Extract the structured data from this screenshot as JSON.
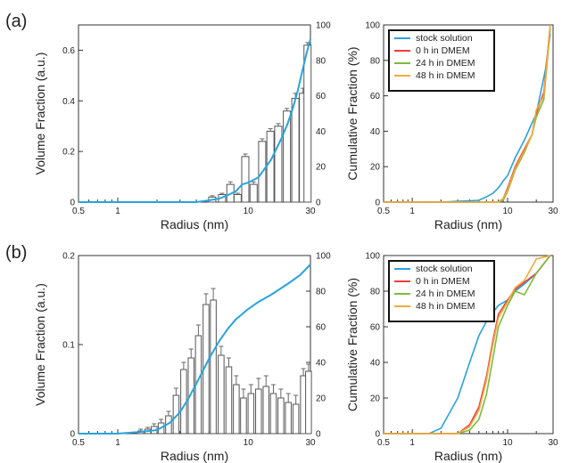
{
  "panel_labels": [
    "(a)",
    "(b)"
  ],
  "chart_data": [
    {
      "type": "bar",
      "panel": "(a)",
      "xlabel": "Radius (nm)",
      "ylabel": "Volume Fraction (a.u.)",
      "xscale": "log",
      "xlim": [
        0.5,
        30
      ],
      "xticks": [
        0.5,
        1,
        10,
        30
      ],
      "ylim": [
        0,
        0.7
      ],
      "yticks": [
        0.0,
        0.2,
        0.4,
        0.6
      ],
      "y2lim": [
        0,
        100
      ],
      "y2ticks": [
        0,
        20,
        40,
        60,
        80,
        100
      ],
      "bars": {
        "x": [
          5.3,
          6.3,
          7.3,
          8.3,
          9.5,
          11.0,
          12.8,
          14.8,
          17.0,
          19.8,
          23.0,
          26.3,
          28.5
        ],
        "values": [
          0.02,
          0.03,
          0.07,
          0.03,
          0.18,
          0.07,
          0.24,
          0.28,
          0.3,
          0.36,
          0.41,
          0.43,
          0.62
        ],
        "errors": [
          0.005,
          0.005,
          0.01,
          0.005,
          0.01,
          0.01,
          0.01,
          0.01,
          0.01,
          0.01,
          0.02,
          0.02,
          0.01
        ]
      },
      "cumulative": {
        "color": "#29a3de",
        "x": [
          0.5,
          0.7,
          1,
          2,
          3,
          4,
          5,
          6,
          7,
          8,
          9,
          10,
          12,
          15,
          18,
          20,
          22,
          24,
          26,
          28,
          30
        ],
        "y": [
          0,
          0,
          0,
          0,
          0,
          0,
          1,
          2,
          4,
          6,
          10,
          11,
          14,
          24,
          36,
          44,
          53,
          63,
          74,
          84,
          92
        ]
      }
    },
    {
      "type": "line",
      "panel": "(a)",
      "xlabel": "Radius (nm)",
      "ylabel": "Cumulative Fraction (%)",
      "xscale": "log",
      "xlim": [
        0.5,
        30
      ],
      "xticks": [
        0.5,
        1,
        10,
        30
      ],
      "ylim": [
        0,
        100
      ],
      "yticks": [
        0,
        20,
        40,
        60,
        80,
        100
      ],
      "legend": "top-left",
      "series": [
        {
          "name": "stock solution",
          "color": "#29a3de",
          "x": [
            0.5,
            1,
            2,
            5,
            6,
            7,
            8,
            9,
            10,
            12,
            15,
            20,
            25,
            28
          ],
          "y": [
            0,
            0,
            0,
            1,
            3,
            5,
            8,
            12,
            15,
            25,
            35,
            50,
            75,
            95
          ]
        },
        {
          "name": "0 h in DMEM",
          "color": "#e8403c",
          "x": [
            0.5,
            1,
            5,
            8,
            9,
            10,
            12,
            15,
            18,
            20,
            24,
            28
          ],
          "y": [
            0,
            0,
            0,
            0,
            2,
            8,
            20,
            30,
            38,
            50,
            62,
            100
          ]
        },
        {
          "name": "24 h in DMEM",
          "color": "#7cbb3c",
          "x": [
            0.5,
            1,
            5,
            8,
            9,
            10,
            12,
            15,
            18,
            20,
            24,
            28
          ],
          "y": [
            0,
            0,
            0,
            0,
            1,
            6,
            18,
            28,
            38,
            48,
            58,
            98
          ]
        },
        {
          "name": "48 h in DMEM",
          "color": "#f2a93b",
          "x": [
            0.5,
            1,
            5,
            8,
            9,
            10,
            12,
            15,
            18,
            20,
            24,
            28
          ],
          "y": [
            0,
            0,
            0,
            0,
            2,
            7,
            19,
            29,
            38,
            52,
            60,
            100
          ]
        }
      ]
    },
    {
      "type": "bar",
      "panel": "(b)",
      "xlabel": "Radius (nm)",
      "ylabel": "Volume Fraction (a.u.)",
      "xscale": "log",
      "xlim": [
        0.5,
        30
      ],
      "xticks": [
        0.5,
        1,
        10,
        30
      ],
      "ylim": [
        0,
        0.2
      ],
      "yticks": [
        0.0,
        0.1,
        0.2
      ],
      "y2lim": [
        0,
        100
      ],
      "y2ticks": [
        0,
        20,
        40,
        60,
        80,
        100
      ],
      "bars": {
        "x": [
          1.5,
          1.7,
          1.9,
          2.15,
          2.45,
          2.8,
          3.2,
          3.65,
          4.15,
          4.75,
          5.4,
          6.2,
          7.1,
          8.1,
          9.2,
          10.5,
          12.0,
          13.7,
          15.6,
          17.8,
          20.3,
          23.2,
          26.5,
          29.0
        ],
        "values": [
          0.003,
          0.005,
          0.008,
          0.012,
          0.02,
          0.043,
          0.072,
          0.085,
          0.11,
          0.145,
          0.15,
          0.088,
          0.075,
          0.055,
          0.04,
          0.045,
          0.05,
          0.053,
          0.045,
          0.04,
          0.035,
          0.033,
          0.065,
          0.07
        ],
        "errors": [
          0.002,
          0.002,
          0.003,
          0.004,
          0.005,
          0.008,
          0.008,
          0.01,
          0.012,
          0.012,
          0.013,
          0.01,
          0.01,
          0.01,
          0.01,
          0.01,
          0.012,
          0.012,
          0.01,
          0.01,
          0.01,
          0.01,
          0.008,
          0.008
        ]
      },
      "cumulative": {
        "color": "#29a3de",
        "x": [
          0.5,
          1,
          1.5,
          2,
          2.5,
          3,
          3.5,
          4,
          5,
          6,
          7,
          8,
          10,
          12,
          15,
          20,
          25,
          30
        ],
        "y": [
          0,
          0,
          1,
          2,
          6,
          12,
          20,
          28,
          42,
          52,
          59,
          64,
          70,
          74,
          78,
          84,
          89,
          95
        ]
      }
    },
    {
      "type": "line",
      "panel": "(b)",
      "xlabel": "Radius (nm)",
      "ylabel": "Cumulative Fraction (%)",
      "xscale": "log",
      "xlim": [
        0.5,
        30
      ],
      "xticks": [
        0.5,
        1,
        10,
        30
      ],
      "ylim": [
        0,
        100
      ],
      "yticks": [
        0,
        20,
        40,
        60,
        80,
        100
      ],
      "legend": "top-left",
      "series": [
        {
          "name": "stock solution",
          "color": "#29a3de",
          "x": [
            0.5,
            1,
            1.5,
            2,
            3,
            4,
            5,
            6,
            7,
            8,
            10,
            12,
            15,
            20,
            28
          ],
          "y": [
            0,
            0,
            0,
            3,
            20,
            40,
            55,
            63,
            68,
            72,
            75,
            80,
            84,
            90,
            100
          ]
        },
        {
          "name": "0 h in DMEM",
          "color": "#e8403c",
          "x": [
            0.5,
            1,
            2,
            3,
            4,
            5,
            6,
            7,
            8,
            10,
            12,
            15,
            20,
            28
          ],
          "y": [
            0,
            0,
            0,
            0,
            5,
            15,
            32,
            52,
            67,
            75,
            81,
            85,
            90,
            100
          ]
        },
        {
          "name": "24 h in DMEM",
          "color": "#7cbb3c",
          "x": [
            0.5,
            1,
            2,
            3,
            4,
            5,
            6,
            7,
            8,
            10,
            12,
            15,
            20,
            28
          ],
          "y": [
            0,
            0,
            0,
            0,
            2,
            8,
            22,
            42,
            60,
            72,
            80,
            78,
            90,
            100
          ]
        },
        {
          "name": "48 h in DMEM",
          "color": "#f2a93b",
          "x": [
            0.5,
            1,
            2,
            3,
            4,
            5,
            6,
            7,
            8,
            10,
            12,
            15,
            20,
            28
          ],
          "y": [
            0,
            0,
            0,
            0,
            4,
            13,
            30,
            50,
            65,
            74,
            82,
            86,
            98,
            100
          ]
        }
      ]
    }
  ]
}
